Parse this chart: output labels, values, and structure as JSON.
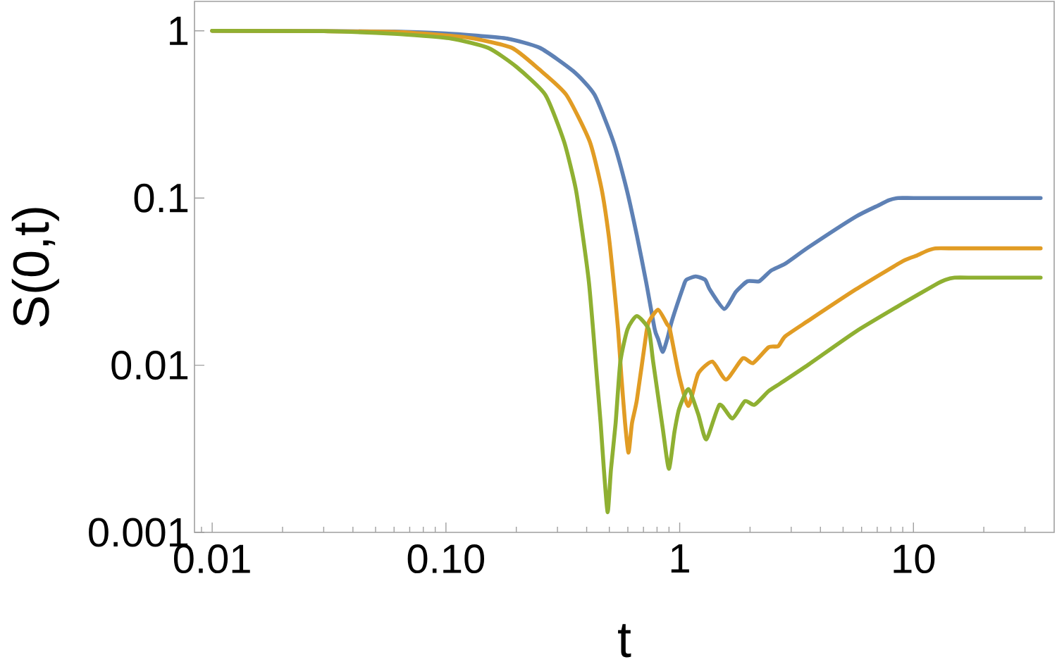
{
  "chart_data": {
    "type": "line",
    "xlabel": "t",
    "ylabel": "S(0,t)",
    "log": "xy",
    "xlim": [
      0.0084,
      40
    ],
    "ylim": [
      0.001,
      1.5
    ],
    "xticks": [
      {
        "value": 0.009,
        "label": null
      },
      0.01,
      {
        "value": 0.02,
        "label": null
      },
      {
        "value": 0.03,
        "label": null
      },
      {
        "value": 0.04,
        "label": null
      },
      {
        "value": 0.05,
        "label": null
      },
      {
        "value": 0.06,
        "label": null
      },
      {
        "value": 0.07,
        "label": null
      },
      {
        "value": 0.08,
        "label": null
      },
      {
        "value": 0.09,
        "label": null
      },
      {
        "value": 0.1,
        "label": "0.10"
      },
      {
        "value": 0.2,
        "label": null
      },
      {
        "value": 0.3,
        "label": null
      },
      {
        "value": 0.4,
        "label": null
      },
      {
        "value": 0.5,
        "label": null
      },
      {
        "value": 0.6,
        "label": null
      },
      {
        "value": 0.7,
        "label": null
      },
      {
        "value": 0.8,
        "label": null
      },
      {
        "value": 0.9,
        "label": null
      },
      1,
      {
        "value": 2,
        "label": null
      },
      {
        "value": 3,
        "label": null
      },
      {
        "value": 4,
        "label": null
      },
      {
        "value": 5,
        "label": null
      },
      {
        "value": 6,
        "label": null
      },
      {
        "value": 7,
        "label": null
      },
      {
        "value": 8,
        "label": null
      },
      {
        "value": 9,
        "label": null
      },
      10,
      {
        "value": 20,
        "label": null
      },
      {
        "value": 30,
        "label": null
      }
    ],
    "yticks": [
      0.001,
      0.01,
      0.1,
      1
    ],
    "series": [
      {
        "color": "#5e81b5",
        "x": [
          0.01,
          0.03,
          0.06,
          0.1,
          0.135,
          0.183,
          0.253,
          0.351,
          0.432,
          0.52,
          0.592,
          0.656,
          0.719,
          0.782,
          0.808,
          0.846,
          0.885,
          0.929,
          1.043,
          1.067,
          1.17,
          1.285,
          1.345,
          1.55,
          1.74,
          1.95,
          2.19,
          2.46,
          2.83,
          3.56,
          5.67,
          7.15,
          7.84,
          8.6,
          10,
          15,
          20,
          35
        ],
        "values": [
          1,
          0.995,
          0.99,
          0.965,
          0.936,
          0.9,
          0.79,
          0.573,
          0.415,
          0.218,
          0.114,
          0.0597,
          0.0313,
          0.0164,
          0.0144,
          0.012,
          0.0144,
          0.0187,
          0.0303,
          0.0324,
          0.034,
          0.0324,
          0.0284,
          0.0217,
          0.0275,
          0.0318,
          0.0318,
          0.0368,
          0.0405,
          0.0508,
          0.0774,
          0.091,
          0.097,
          0.1,
          0.1,
          0.1,
          0.1,
          0.1
        ]
      },
      {
        "color": "#e19c24",
        "x": [
          0.01,
          0.03,
          0.06,
          0.1,
          0.132,
          0.192,
          0.25,
          0.327,
          0.412,
          0.463,
          0.497,
          0.522,
          0.545,
          0.563,
          0.584,
          0.604,
          0.625,
          0.656,
          0.719,
          0.737,
          0.808,
          0.885,
          0.908,
          0.995,
          1.09,
          1.2,
          1.38,
          1.58,
          1.86,
          2.06,
          2.4,
          2.64,
          2.83,
          3.56,
          5.67,
          9,
          10.35,
          11.4,
          12.4,
          15,
          20,
          35
        ],
        "values": [
          1,
          0.995,
          0.985,
          0.94,
          0.9,
          0.79,
          0.59,
          0.415,
          0.218,
          0.114,
          0.0597,
          0.0313,
          0.0164,
          0.0086,
          0.0045,
          0.003,
          0.0045,
          0.0062,
          0.0154,
          0.0181,
          0.0215,
          0.0175,
          0.0164,
          0.0086,
          0.0057,
          0.0089,
          0.0105,
          0.0082,
          0.011,
          0.0103,
          0.0128,
          0.013,
          0.0149,
          0.0185,
          0.0284,
          0.0419,
          0.0453,
          0.0483,
          0.05,
          0.05,
          0.05,
          0.05
        ]
      },
      {
        "color": "#8fb032",
        "x": [
          0.01,
          0.03,
          0.06,
          0.105,
          0.152,
          0.2,
          0.266,
          0.32,
          0.359,
          0.385,
          0.409,
          0.426,
          0.442,
          0.459,
          0.474,
          0.492,
          0.508,
          0.532,
          0.557,
          0.598,
          0.656,
          0.737,
          0.77,
          0.846,
          0.899,
          0.95,
          0.995,
          1.09,
          1.2,
          1.3,
          1.48,
          1.68,
          1.9,
          2.09,
          2.4,
          2.7,
          3.56,
          5.67,
          9,
          12.4,
          13.7,
          15,
          18,
          22,
          35
        ],
        "values": [
          1,
          0.995,
          0.96,
          0.9,
          0.79,
          0.61,
          0.415,
          0.218,
          0.114,
          0.0597,
          0.0313,
          0.0164,
          0.0086,
          0.0045,
          0.00237,
          0.00132,
          0.00237,
          0.0045,
          0.0104,
          0.0164,
          0.0197,
          0.0164,
          0.0105,
          0.0042,
          0.0024,
          0.004,
          0.0055,
          0.0072,
          0.0051,
          0.0036,
          0.0058,
          0.0048,
          0.0061,
          0.0058,
          0.007,
          0.0078,
          0.0101,
          0.0159,
          0.0234,
          0.0303,
          0.0324,
          0.0334,
          0.0334,
          0.0334,
          0.0334
        ]
      }
    ]
  }
}
